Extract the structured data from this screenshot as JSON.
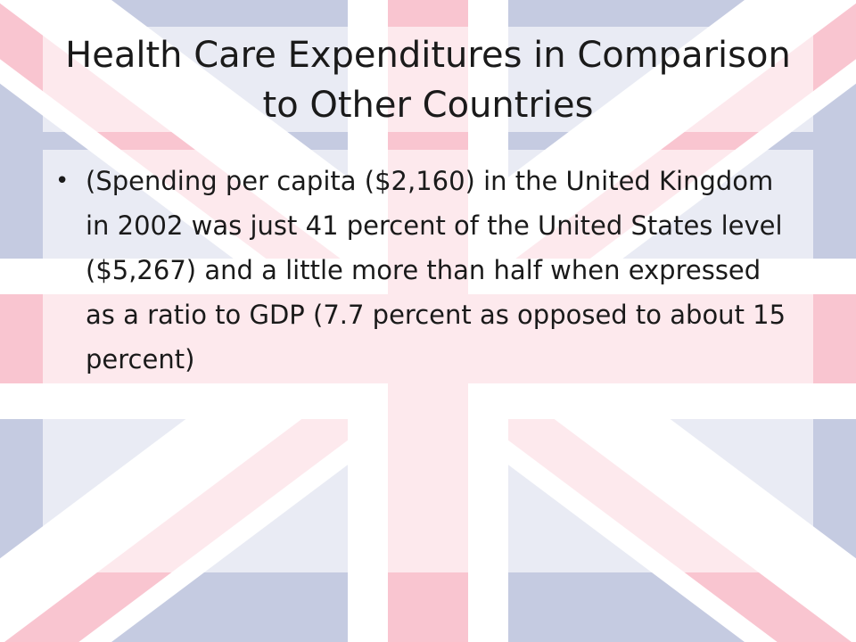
{
  "slide": {
    "title": "Health Care Expenditures in Comparison to Other Countries",
    "bullets": [
      {
        "marker": "•",
        "text": "(Spending per capita ($2,160) in the United Kingdom in 2002 was just 41 percent of the United States level ($5,267) and a little more than half when expressed as a ratio to GDP (7.7 percent as opposed to about 15 percent)"
      }
    ]
  },
  "background": {
    "icon": "union-jack-flag-icon",
    "colors": {
      "blue": "#c5cbe1",
      "white": "#ffffff",
      "red": "#f9c5d0",
      "red_dark": "#f6b3c2"
    }
  }
}
